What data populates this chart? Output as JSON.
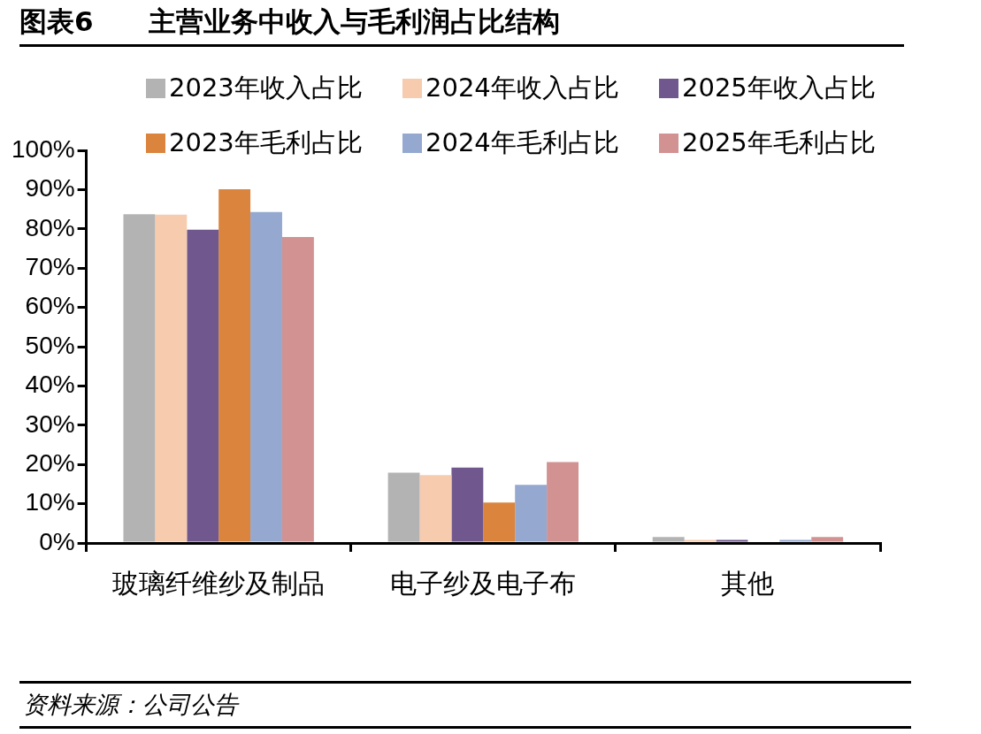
{
  "chart_data": {
    "type": "bar",
    "title": "图表6　　主营业务中收入与毛利润占比结构",
    "categories": [
      "玻璃纤维纱及制品",
      "电子纱及电子布",
      "其他"
    ],
    "series": [
      {
        "name": "2023年收入占比",
        "color": "#b3b3b3",
        "values": [
          83.7,
          17.9,
          1.5
        ]
      },
      {
        "name": "2024年收入占比",
        "color": "#f7cbae",
        "values": [
          83.6,
          17.3,
          0.8
        ]
      },
      {
        "name": "2025年收入占比",
        "color": "#70588e",
        "values": [
          79.8,
          19.2,
          0.8
        ]
      },
      {
        "name": "2023年毛利占比",
        "color": "#db843d",
        "values": [
          90.1,
          10.3,
          0
        ]
      },
      {
        "name": "2024年毛利占比",
        "color": "#95a9d0",
        "values": [
          84.3,
          14.8,
          0.8
        ]
      },
      {
        "name": "2025年毛利占比",
        "color": "#d29292",
        "values": [
          77.9,
          20.6,
          1.5
        ]
      }
    ],
    "ylim": [
      0,
      100
    ],
    "yticks": [
      {
        "value": 0,
        "label": "0%"
      },
      {
        "value": 10,
        "label": "10%"
      },
      {
        "value": 20,
        "label": "20%"
      },
      {
        "value": 30,
        "label": "30%"
      },
      {
        "value": 40,
        "label": "40%"
      },
      {
        "value": 50,
        "label": "50%"
      },
      {
        "value": 60,
        "label": "60%"
      },
      {
        "value": 70,
        "label": "70%"
      },
      {
        "value": 80,
        "label": "80%"
      },
      {
        "value": 90,
        "label": "90%"
      },
      {
        "value": 100,
        "label": "100%"
      }
    ],
    "grid": false,
    "legend": "top",
    "annotations": [
      "资料来源：公司公告"
    ]
  }
}
